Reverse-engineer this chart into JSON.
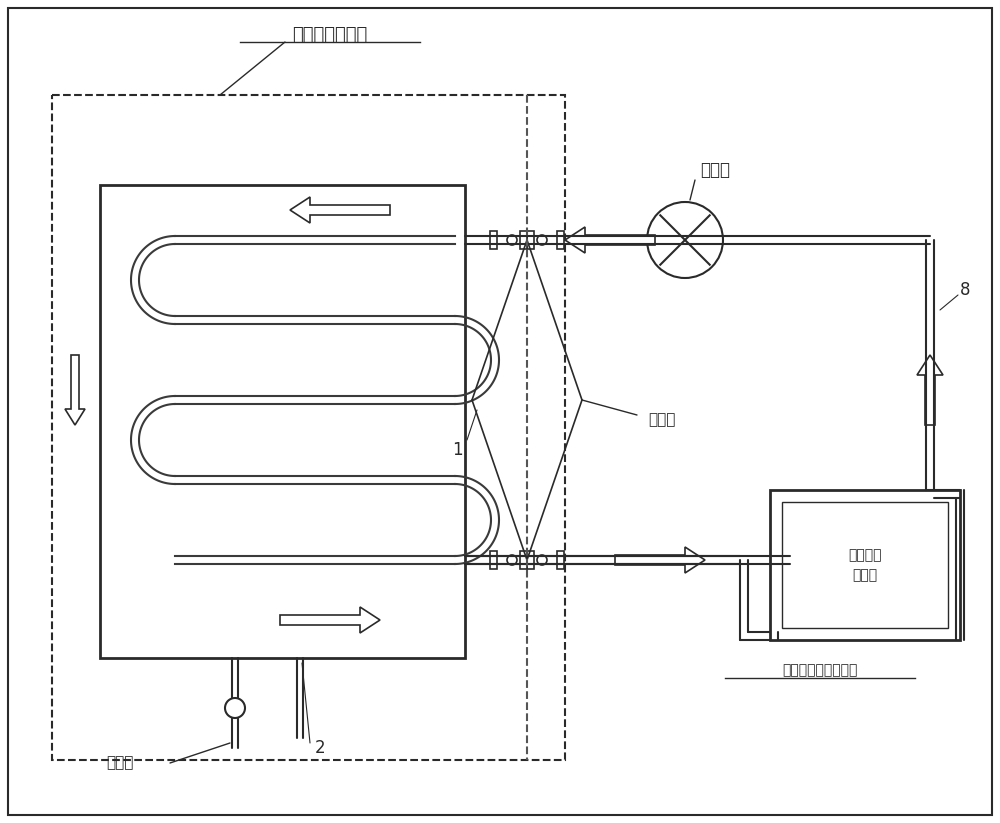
{
  "bg_color": "#ffffff",
  "line_color": "#2a2a2a",
  "label_freezing_wall": "相变蓄冷冷冻墙",
  "label_pump": "液压泵",
  "label_valve": "开断阀",
  "label_drain_valve": "排水阀",
  "label_storage_tank": "液态相变蓄冷储存槽",
  "label_coolant_line1": "相变蓄冷",
  "label_coolant_line2": "载冷剂",
  "label_1": "1",
  "label_2": "2",
  "label_8": "8"
}
